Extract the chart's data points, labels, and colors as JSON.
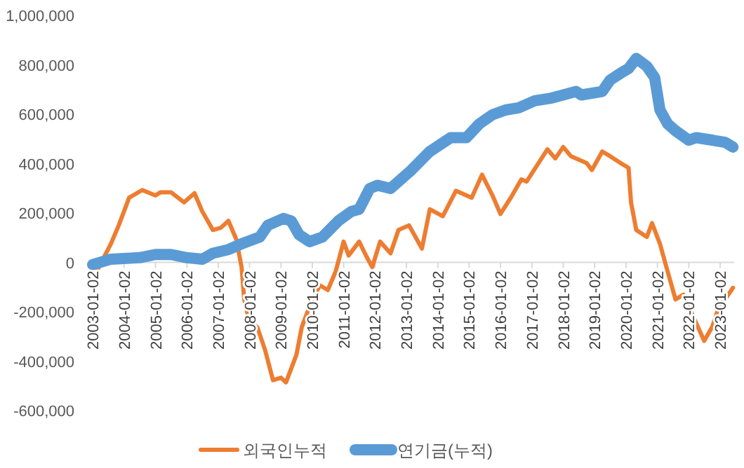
{
  "chart_data": {
    "type": "line",
    "x": [
      "2003-01",
      "2003-03",
      "2003-08",
      "2003-11",
      "2004-03",
      "2004-08",
      "2005-01",
      "2005-03",
      "2005-07",
      "2005-12",
      "2006-04",
      "2006-07",
      "2006-11",
      "2007-02",
      "2007-05",
      "2007-08",
      "2007-10",
      "2007-11",
      "2008-01",
      "2008-04",
      "2008-07",
      "2008-10",
      "2009-01",
      "2009-03",
      "2009-07",
      "2009-09",
      "2010-01",
      "2010-04",
      "2010-07",
      "2010-10",
      "2011-01",
      "2011-03",
      "2011-07",
      "2011-10",
      "2011-12",
      "2012-03",
      "2012-07",
      "2012-10",
      "2013-02",
      "2013-07",
      "2013-10",
      "2014-03",
      "2014-08",
      "2015-02",
      "2015-06",
      "2015-10",
      "2016-01",
      "2016-05",
      "2016-09",
      "2016-11",
      "2017-07",
      "2017-10",
      "2018-01",
      "2018-04",
      "2018-10",
      "2018-12",
      "2019-04",
      "2019-07",
      "2019-11",
      "2020-02",
      "2020-03",
      "2020-05",
      "2020-09",
      "2020-11",
      "2021-02",
      "2021-05",
      "2021-08",
      "2021-11",
      "2022-03",
      "2022-07",
      "2022-10",
      "2023-01",
      "2023-03",
      "2023-06"
    ],
    "series": [
      {
        "name": "외국인누적",
        "color": "#ed7d31",
        "values": [
          -9000,
          -28000,
          75000,
          150000,
          262000,
          293000,
          271000,
          284000,
          284000,
          243000,
          280000,
          206000,
          131000,
          140000,
          168000,
          93000,
          -19000,
          -150000,
          -243000,
          -262000,
          -355000,
          -477000,
          -467000,
          -486000,
          -374000,
          -262000,
          -150000,
          -93000,
          -112000,
          -37000,
          84000,
          28000,
          84000,
          19000,
          -19000,
          84000,
          37000,
          131000,
          150000,
          56000,
          215000,
          187000,
          290000,
          262000,
          355000,
          271000,
          196000,
          262000,
          336000,
          327000,
          458000,
          421000,
          467000,
          430000,
          402000,
          374000,
          449000,
          430000,
          402000,
          383000,
          243000,
          131000,
          103000,
          159000,
          75000,
          -37000,
          -150000,
          -131000,
          -224000,
          -318000,
          -262000,
          -168000,
          -150000,
          -103000
        ]
      },
      {
        "name": "연기금(누적)",
        "color": "#5b9bd5",
        "x": [
          "2003-01",
          "2003-08",
          "2004-07",
          "2005-01",
          "2005-07",
          "2006-01",
          "2006-07",
          "2006-11",
          "2007-05",
          "2007-10",
          "2008-05",
          "2008-08",
          "2009-02",
          "2009-05",
          "2009-08",
          "2009-12",
          "2010-05",
          "2010-11",
          "2011-04",
          "2011-07",
          "2011-11",
          "2012-02",
          "2012-07",
          "2013-03",
          "2013-10",
          "2014-06",
          "2014-12",
          "2015-05",
          "2015-10",
          "2016-03",
          "2016-08",
          "2017-02",
          "2017-08",
          "2018-01",
          "2018-06",
          "2018-08",
          "2019-04",
          "2019-07",
          "2019-11",
          "2020-02",
          "2020-05",
          "2020-09",
          "2020-12",
          "2021-02",
          "2021-05",
          "2021-08",
          "2022-01",
          "2022-04",
          "2022-10",
          "2023-03",
          "2023-06"
        ],
        "values": [
          -9000,
          13000,
          19000,
          32000,
          32000,
          19000,
          13000,
          37000,
          52000,
          75000,
          103000,
          150000,
          178000,
          168000,
          112000,
          84000,
          103000,
          168000,
          206000,
          215000,
          299000,
          312000,
          299000,
          374000,
          449000,
          505000,
          505000,
          561000,
          598000,
          617000,
          626000,
          654000,
          664000,
          678000,
          692000,
          678000,
          692000,
          738000,
          766000,
          785000,
          826000,
          794000,
          748000,
          617000,
          561000,
          533000,
          495000,
          505000,
          495000,
          486000,
          467000
        ]
      }
    ],
    "xlim": [
      "2003-01-01",
      "2023-06-15"
    ],
    "xticks": [
      "2003-01-02",
      "2004-01-02",
      "2005-01-02",
      "2006-01-02",
      "2007-01-02",
      "2008-01-02",
      "2009-01-02",
      "2010-01-02",
      "2011-01-02",
      "2012-01-02",
      "2013-01-02",
      "2014-01-02",
      "2015-01-02",
      "2016-01-02",
      "2017-01-02",
      "2018-01-02",
      "2019-01-02",
      "2020-01-02",
      "2021-01-02",
      "2022-01-02",
      "2023-01-02"
    ],
    "ylim": [
      -600000,
      1000000
    ],
    "yticks": [
      {
        "value": -600000,
        "label": "-600,000"
      },
      {
        "value": -400000,
        "label": "-400,000"
      },
      {
        "value": -200000,
        "label": "-200,000"
      },
      {
        "value": 0,
        "label": "0"
      },
      {
        "value": 200000,
        "label": "200,000"
      },
      {
        "value": 400000,
        "label": "400,000"
      },
      {
        "value": 600000,
        "label": "600,000"
      },
      {
        "value": 800000,
        "label": "800,000"
      },
      {
        "value": 1000000,
        "label": "1,000,000"
      }
    ],
    "grid": false,
    "legend": "bottom",
    "marker": "none",
    "line_style": "solid"
  }
}
